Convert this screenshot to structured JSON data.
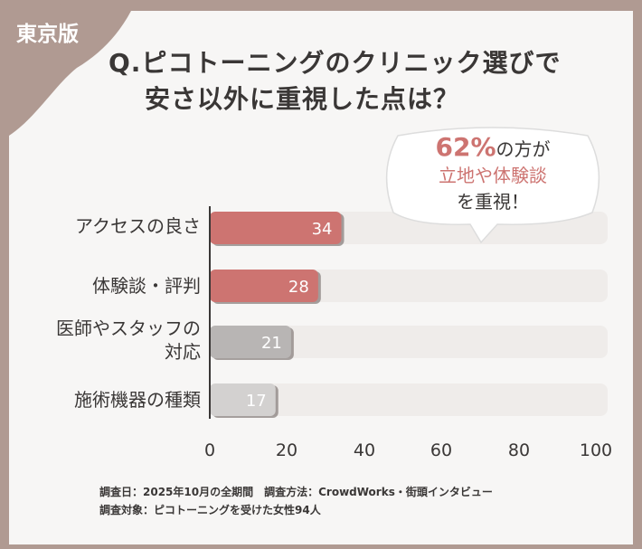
{
  "badge": "東京版",
  "title": {
    "line1": "Q.ピコトーニングのクリニック選びで",
    "line2": "安さ以外に重視した点は？"
  },
  "callout": {
    "percent": "62%",
    "line1_rest": "の方が",
    "line2": "立地や体験談",
    "line3": "を重視！"
  },
  "colors": {
    "background": "#b09a92",
    "highlight": "#cd7471",
    "gray1": "#b8b5b4",
    "gray2": "#d3d1d0",
    "track": "#efecea"
  },
  "chart_data": {
    "type": "bar",
    "orientation": "horizontal",
    "categories": [
      "アクセスの良さ",
      "体験談・評判",
      "医師やスタッフの対応",
      "施術機器の種類"
    ],
    "category_lines": [
      [
        "アクセスの良さ"
      ],
      [
        "体験談・評判"
      ],
      [
        "医師やスタッフの",
        "対応"
      ],
      [
        "施術機器の種類"
      ]
    ],
    "values": [
      34,
      28,
      21,
      17
    ],
    "value_labels": [
      "34",
      "28",
      "21",
      "17"
    ],
    "xlim": [
      0,
      100
    ],
    "xticks": [
      "0",
      "20",
      "40",
      "60",
      "80",
      "100"
    ],
    "grid": false
  },
  "footer": {
    "line1": "調査日：2025年10月の全期間　調査方法：CrowdWorks・街頭インタビュー",
    "line2": "調査対象：ピコトーニングを受けた女性94人"
  }
}
